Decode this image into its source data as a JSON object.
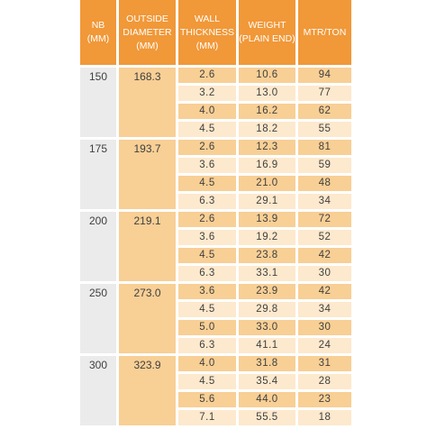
{
  "headers": {
    "nb": "NB\n(mm)",
    "od": "OUTSIDE\nDIAMETER\n(mm)",
    "wt": "WALL\nTHICKNESS\n(mm)",
    "wg": "WEIGHT\n(PLAIN END)",
    "mt": "MTR/TON"
  },
  "groups": [
    {
      "nb": "150",
      "od": "168.3",
      "rows": [
        {
          "wt": "2.6",
          "wg": "10.6",
          "mt": "94"
        },
        {
          "wt": "3.2",
          "wg": "13.0",
          "mt": "77"
        },
        {
          "wt": "4.0",
          "wg": "16.2",
          "mt": "62"
        },
        {
          "wt": "4.5",
          "wg": "18.2",
          "mt": "55"
        }
      ]
    },
    {
      "nb": "175",
      "od": "193.7",
      "rows": [
        {
          "wt": "2.6",
          "wg": "12.3",
          "mt": "81"
        },
        {
          "wt": "3.6",
          "wg": "16.9",
          "mt": "59"
        },
        {
          "wt": "4.5",
          "wg": "21.0",
          "mt": "48"
        },
        {
          "wt": "6.3",
          "wg": "29.1",
          "mt": "34"
        }
      ]
    },
    {
      "nb": "200",
      "od": "219.1",
      "rows": [
        {
          "wt": "2.6",
          "wg": "13.9",
          "mt": "72"
        },
        {
          "wt": "3.6",
          "wg": "19.2",
          "mt": "52"
        },
        {
          "wt": "4.5",
          "wg": "23.8",
          "mt": "42"
        },
        {
          "wt": "6.3",
          "wg": "33.1",
          "mt": "30"
        }
      ]
    },
    {
      "nb": "250",
      "od": "273.0",
      "rows": [
        {
          "wt": "3.6",
          "wg": "23.9",
          "mt": "42"
        },
        {
          "wt": "4.5",
          "wg": "29.8",
          "mt": "34"
        },
        {
          "wt": "5.0",
          "wg": "33.0",
          "mt": "30"
        },
        {
          "wt": "6.3",
          "wg": "41.1",
          "mt": "24"
        }
      ]
    },
    {
      "nb": "300",
      "od": "323.9",
      "rows": [
        {
          "wt": "4.0",
          "wg": "31.8",
          "mt": "31"
        },
        {
          "wt": "4.5",
          "wg": "35.4",
          "mt": "28"
        },
        {
          "wt": "5.6",
          "wg": "44.0",
          "mt": "23"
        },
        {
          "wt": "7.1",
          "wg": "55.5",
          "mt": "18"
        }
      ]
    }
  ],
  "colors": {
    "header_bg": "#f19838",
    "od_bg": "#f8cf95",
    "nb_bg": "#ebebeb",
    "row_dark": "#f8cf95",
    "row_light": "#fde9cd"
  }
}
